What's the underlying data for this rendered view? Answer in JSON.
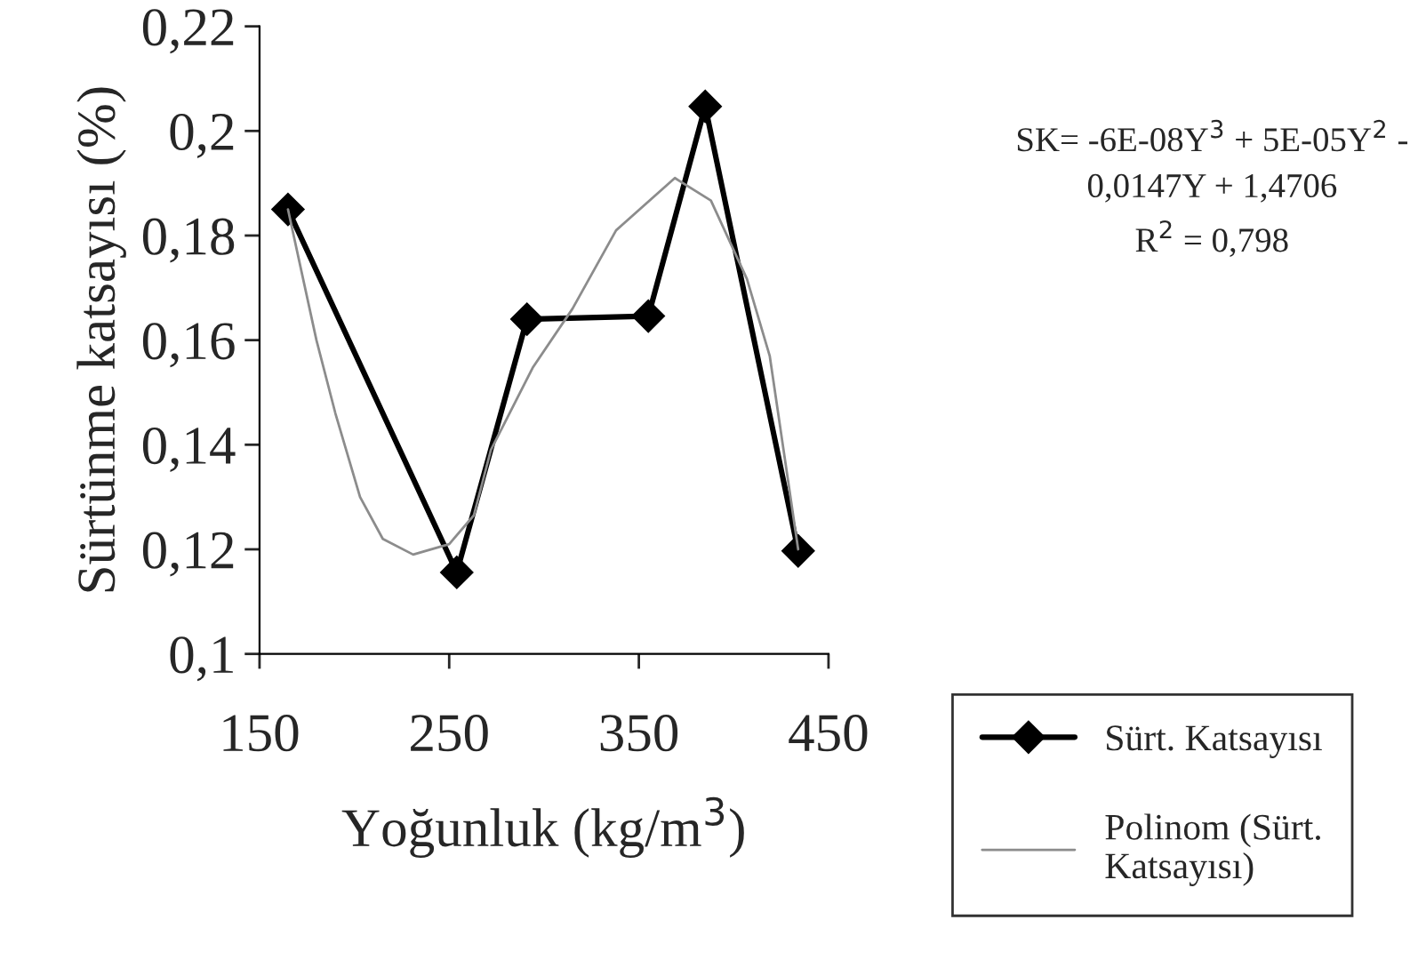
{
  "chart_data": {
    "type": "line",
    "xlabel": "Yoğunluk (kg/m$^{3}$)",
    "ylabel": "Sürtünme katsayısı (%)",
    "series": [
      {
        "name": "Sürt. Katsayısı",
        "color": "#000000",
        "marker": "diamond",
        "x": [
          165,
          254,
          291,
          355,
          385,
          434
        ],
        "values": [
          0.185,
          0.1156,
          0.164,
          0.1646,
          0.2047,
          0.1197
        ]
      },
      {
        "name": "Polinom (Sürt.\nKatsayısı)",
        "color": "#8c8c8c",
        "marker": "none",
        "x": [
          165,
          180,
          190,
          203,
          215,
          231,
          250,
          263,
          272,
          294,
          315,
          338,
          369,
          388,
          407,
          419,
          434
        ],
        "values": [
          0.185,
          0.16,
          0.146,
          0.13,
          0.122,
          0.119,
          0.121,
          0.1265,
          0.139,
          0.1547,
          0.166,
          0.181,
          0.191,
          0.1867,
          0.1717,
          0.157,
          0.12
        ]
      }
    ],
    "xlim": [
      150,
      450
    ],
    "xticks": [
      150,
      250,
      350,
      450
    ],
    "ylim": [
      0.1,
      0.22
    ],
    "yticks": [
      {
        "value": 0.1,
        "label": "0,1"
      },
      {
        "value": 0.12,
        "label": "0,12"
      },
      {
        "value": 0.14,
        "label": "0,14"
      },
      {
        "value": 0.16,
        "label": "0,16"
      },
      {
        "value": 0.18,
        "label": "0,18"
      },
      {
        "value": 0.2,
        "label": "0,2"
      },
      {
        "value": 0.22,
        "label": "0,22"
      }
    ],
    "annotations": [
      "SK= -6E-08Y$^{3}$ + 5E-05Y$^{2}$ -\n0,0147Y + 1,4706\nR$^{2}$ = 0,798"
    ],
    "grid": false,
    "legend": "bottom right",
    "line_style": "solid"
  }
}
